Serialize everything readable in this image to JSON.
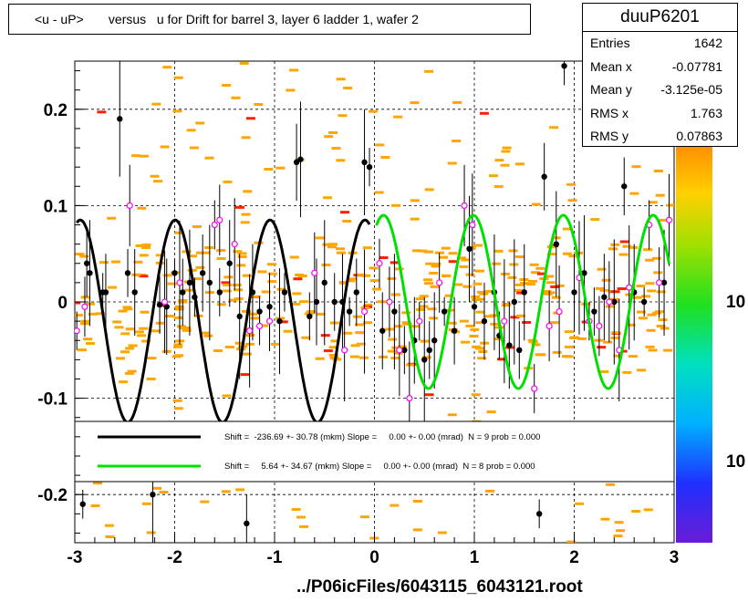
{
  "title": "<u - uP>       versus   u for Drift for barrel 3, layer 6 ladder 1, wafer 2",
  "stats": {
    "name": "duuP6201",
    "rows": [
      {
        "label": "Entries",
        "value": "1642"
      },
      {
        "label": "Mean x",
        "value": "-0.07781"
      },
      {
        "label": "Mean y",
        "value": "-3.125e-05"
      },
      {
        "label": "RMS x",
        "value": "1.763"
      },
      {
        "label": "RMS y",
        "value": "0.07863"
      }
    ]
  },
  "footer": "../P06icFiles/6043115_6043121.root",
  "colors": {
    "fit1": "#000000",
    "fit2": "#00e000",
    "histogram_cells": "#ffa500",
    "hot_cells": "#ff2000",
    "profile_points": "#000000",
    "profile_markers_alt": "#ff00ff"
  },
  "chart_data": {
    "type": "scatter",
    "xlim": [
      -3,
      3
    ],
    "ylim": [
      -0.25,
      0.25
    ],
    "xticks": [
      "-3",
      "-2",
      "-1",
      "0",
      "1",
      "2",
      "3"
    ],
    "yticks": [
      "0.2",
      "0.1",
      "0",
      "-0.1",
      "-0.2"
    ],
    "grid": true,
    "palette_labels": [
      "10",
      "10"
    ],
    "legend": [
      {
        "text": "Shift =  -236.69 +- 30.78 (mkm) Slope =     0.00 +- 0.00 (mrad)  N = 9 prob = 0.000"
      },
      {
        "text": "Shift =     5.64 +- 34.67 (mkm) Slope =     0.00 +- 0.00 (mrad)  N = 8 prob = 0.000"
      }
    ],
    "black_points": [
      [
        -2.92,
        -0.21
      ],
      [
        -2.88,
        0.04
      ],
      [
        -2.85,
        0.03
      ],
      [
        -2.72,
        0.01
      ],
      [
        -2.69,
        0.01
      ],
      [
        -2.55,
        0.19
      ],
      [
        -2.47,
        0.03
      ],
      [
        -2.4,
        0.01
      ],
      [
        -2.22,
        -0.2
      ],
      [
        -2.15,
        -0.003
      ],
      [
        -2.08,
        -0.005
      ],
      [
        -2.0,
        0.03
      ],
      [
        -1.92,
        0.01
      ],
      [
        -1.85,
        0.02
      ],
      [
        -1.8,
        0.005
      ],
      [
        -1.72,
        0.03
      ],
      [
        -1.65,
        0.02
      ],
      [
        -1.55,
        0.01
      ],
      [
        -1.45,
        0.04
      ],
      [
        -1.35,
        -0.015
      ],
      [
        -1.28,
        -0.23
      ],
      [
        -1.22,
        0.01
      ],
      [
        -1.15,
        -0.01
      ],
      [
        -1.05,
        -0.005
      ],
      [
        -0.95,
        -0.02
      ],
      [
        -0.9,
        0.01
      ],
      [
        -0.78,
        0.145
      ],
      [
        -0.74,
        0.148
      ],
      [
        -0.65,
        -0.015
      ],
      [
        -0.58,
        0.0
      ],
      [
        -0.5,
        0.02
      ],
      [
        -0.4,
        0.0
      ],
      [
        -0.32,
        0.0
      ],
      [
        -0.25,
        -0.01
      ],
      [
        -0.18,
        0.01
      ],
      [
        -0.1,
        0.145
      ],
      [
        -0.05,
        0.14
      ],
      [
        0.08,
        -0.03
      ],
      [
        0.2,
        -0.01
      ],
      [
        0.3,
        -0.05
      ],
      [
        0.4,
        -0.04
      ],
      [
        0.5,
        -0.06
      ],
      [
        0.55,
        -0.05
      ],
      [
        0.6,
        -0.04
      ],
      [
        0.7,
        -0.01
      ],
      [
        0.8,
        -0.03
      ],
      [
        0.95,
        0.055
      ],
      [
        1.0,
        -0.005
      ],
      [
        1.1,
        -0.02
      ],
      [
        1.2,
        0.01
      ],
      [
        1.25,
        -0.035
      ],
      [
        1.35,
        -0.045
      ],
      [
        1.4,
        0.0
      ],
      [
        1.45,
        -0.05
      ],
      [
        1.5,
        0.01
      ],
      [
        1.65,
        -0.22
      ],
      [
        1.7,
        0.13
      ],
      [
        1.82,
        0.06
      ],
      [
        1.9,
        0.245
      ],
      [
        2.0,
        0.01
      ],
      [
        2.1,
        0.03
      ],
      [
        2.2,
        -0.01
      ],
      [
        2.3,
        0.005
      ],
      [
        2.4,
        0.0
      ],
      [
        2.5,
        0.12
      ],
      [
        2.6,
        0.01
      ],
      [
        2.7,
        0.0
      ],
      [
        2.8,
        0.23
      ],
      [
        2.9,
        0.02
      ]
    ],
    "magenta_points": [
      [
        -2.98,
        -0.03
      ],
      [
        -2.9,
        -0.005
      ],
      [
        -2.45,
        0.1
      ],
      [
        -2.1,
        0.0
      ],
      [
        -1.95,
        0.02
      ],
      [
        -1.6,
        0.08
      ],
      [
        -1.55,
        0.085
      ],
      [
        -1.4,
        0.06
      ],
      [
        -1.25,
        -0.03
      ],
      [
        -1.15,
        -0.025
      ],
      [
        -1.05,
        -0.02
      ],
      [
        -0.6,
        0.03
      ],
      [
        -0.3,
        -0.05
      ],
      [
        -0.1,
        -0.01
      ],
      [
        0.05,
        0.04
      ],
      [
        0.15,
        0.0
      ],
      [
        0.25,
        -0.05
      ],
      [
        0.35,
        -0.1
      ],
      [
        0.45,
        -0.02
      ],
      [
        0.65,
        0.02
      ],
      [
        0.9,
        0.1
      ],
      [
        0.98,
        0.08
      ],
      [
        1.3,
        -0.02
      ],
      [
        1.6,
        -0.09
      ],
      [
        1.75,
        -0.025
      ],
      [
        1.85,
        -0.01
      ],
      [
        2.05,
        0.025
      ],
      [
        2.15,
        -0.02
      ],
      [
        2.25,
        -0.025
      ],
      [
        2.35,
        0.0
      ],
      [
        2.45,
        -0.05
      ],
      [
        2.55,
        0.015
      ],
      [
        2.75,
        0.08
      ],
      [
        2.85,
        0.02
      ],
      [
        2.95,
        0.085
      ]
    ],
    "fit1": {
      "name": "",
      "x_range": [
        -2.98,
        -0.05
      ],
      "amplitude": 0.105,
      "offset": -0.02,
      "period": 0.95,
      "phase": 0.35
    },
    "fit2": {
      "name": "",
      "x_range": [
        0.02,
        2.95
      ],
      "amplitude": 0.09,
      "offset": 0.0,
      "period": 0.9,
      "phase": 0.15
    }
  }
}
